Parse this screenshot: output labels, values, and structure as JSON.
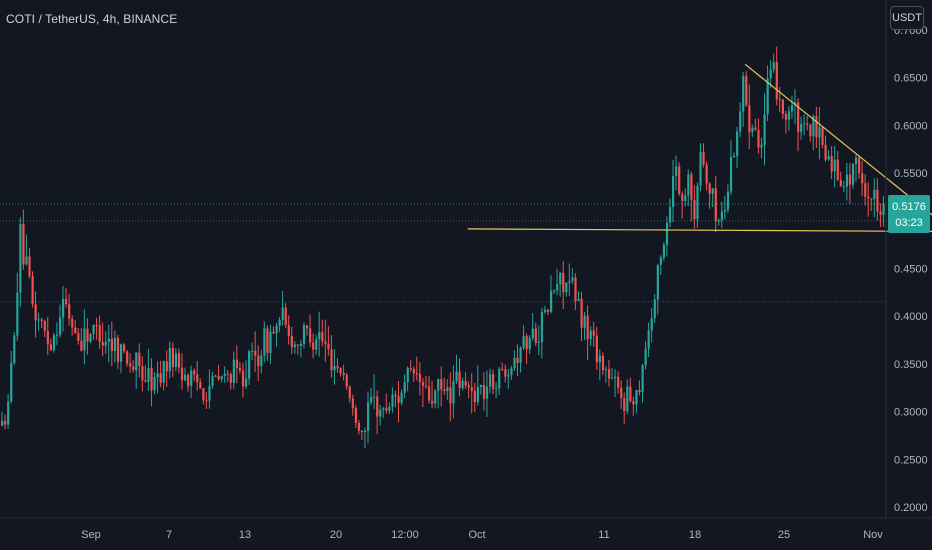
{
  "header": {
    "symbol": "COTI / TetherUS, 4h, BINANCE",
    "currency": "USDT"
  },
  "colors": {
    "background": "#131722",
    "up": "#26a69a",
    "down": "#ef5350",
    "trendline": "#e7c55a",
    "last_price_bg": "#26a69a",
    "dotted_line": "#2a8a8a",
    "axis_text": "#b2b5be"
  },
  "price_tag": {
    "price": "0.5176",
    "countdown": "03:23"
  },
  "chart_data": {
    "type": "candlestick",
    "y_axis": {
      "ylim": [
        0.19,
        0.705
      ],
      "ticks": [
        "0.2000",
        "0.2500",
        "0.3000",
        "0.3500",
        "0.4000",
        "0.4500",
        "0.5000",
        "0.5500",
        "0.6000",
        "0.6500",
        "0.7000"
      ]
    },
    "x_axis": {
      "tick_labels": [
        "Sep",
        "7",
        "13",
        "20",
        "12:00",
        "Oct",
        "11",
        "18",
        "25",
        "Nov"
      ]
    },
    "last_price": 0.5176,
    "horizontal_levels": [
      0.5176,
      0.5,
      0.415
    ],
    "price_path": [
      [
        0,
        0.285
      ],
      [
        2,
        0.3
      ],
      [
        6,
        0.48
      ],
      [
        10,
        0.41
      ],
      [
        16,
        0.37
      ],
      [
        20,
        0.415
      ],
      [
        25,
        0.375
      ],
      [
        30,
        0.385
      ],
      [
        38,
        0.37
      ],
      [
        44,
        0.345
      ],
      [
        50,
        0.33
      ],
      [
        55,
        0.36
      ],
      [
        60,
        0.34
      ],
      [
        66,
        0.325
      ],
      [
        72,
        0.335
      ],
      [
        78,
        0.34
      ],
      [
        84,
        0.36
      ],
      [
        88,
        0.38
      ],
      [
        92,
        0.395
      ],
      [
        96,
        0.37
      ],
      [
        100,
        0.385
      ],
      [
        104,
        0.38
      ],
      [
        108,
        0.355
      ],
      [
        112,
        0.34
      ],
      [
        115,
        0.3
      ],
      [
        118,
        0.28
      ],
      [
        121,
        0.31
      ],
      [
        125,
        0.3
      ],
      [
        130,
        0.32
      ],
      [
        135,
        0.34
      ],
      [
        140,
        0.315
      ],
      [
        145,
        0.32
      ],
      [
        150,
        0.33
      ],
      [
        154,
        0.32
      ],
      [
        158,
        0.325
      ],
      [
        162,
        0.335
      ],
      [
        166,
        0.35
      ],
      [
        170,
        0.37
      ],
      [
        174,
        0.38
      ],
      [
        178,
        0.4
      ],
      [
        181,
        0.43
      ],
      [
        184,
        0.44
      ],
      [
        187,
        0.425
      ],
      [
        190,
        0.4
      ],
      [
        193,
        0.38
      ],
      [
        196,
        0.355
      ],
      [
        199,
        0.335
      ],
      [
        202,
        0.32
      ],
      [
        205,
        0.315
      ],
      [
        208,
        0.32
      ],
      [
        211,
        0.37
      ],
      [
        214,
        0.42
      ],
      [
        217,
        0.48
      ],
      [
        219,
        0.52
      ],
      [
        221,
        0.565
      ],
      [
        223,
        0.51
      ],
      [
        225,
        0.56
      ],
      [
        227,
        0.495
      ],
      [
        229,
        0.575
      ],
      [
        231,
        0.54
      ],
      [
        233,
        0.52
      ],
      [
        235,
        0.5
      ],
      [
        237,
        0.515
      ],
      [
        239,
        0.56
      ],
      [
        241,
        0.6
      ],
      [
        243,
        0.64
      ],
      [
        245,
        0.61
      ],
      [
        247,
        0.6
      ],
      [
        249,
        0.58
      ],
      [
        251,
        0.64
      ],
      [
        253,
        0.65
      ],
      [
        255,
        0.63
      ],
      [
        257,
        0.61
      ],
      [
        259,
        0.62
      ],
      [
        261,
        0.6
      ],
      [
        263,
        0.59
      ],
      [
        265,
        0.6
      ],
      [
        267,
        0.585
      ],
      [
        269,
        0.58
      ],
      [
        271,
        0.565
      ],
      [
        273,
        0.555
      ],
      [
        275,
        0.545
      ],
      [
        277,
        0.54
      ],
      [
        279,
        0.56
      ],
      [
        281,
        0.545
      ],
      [
        283,
        0.535
      ],
      [
        285,
        0.525
      ],
      [
        287,
        0.52
      ],
      [
        289,
        0.515
      ]
    ],
    "trendlines": [
      {
        "name": "support",
        "from": [
          153,
          0.4915
        ],
        "to": [
          387,
          0.4875
        ]
      },
      {
        "name": "resistance",
        "from": [
          244,
          0.664
        ],
        "to": [
          357,
          0.373
        ]
      }
    ]
  }
}
